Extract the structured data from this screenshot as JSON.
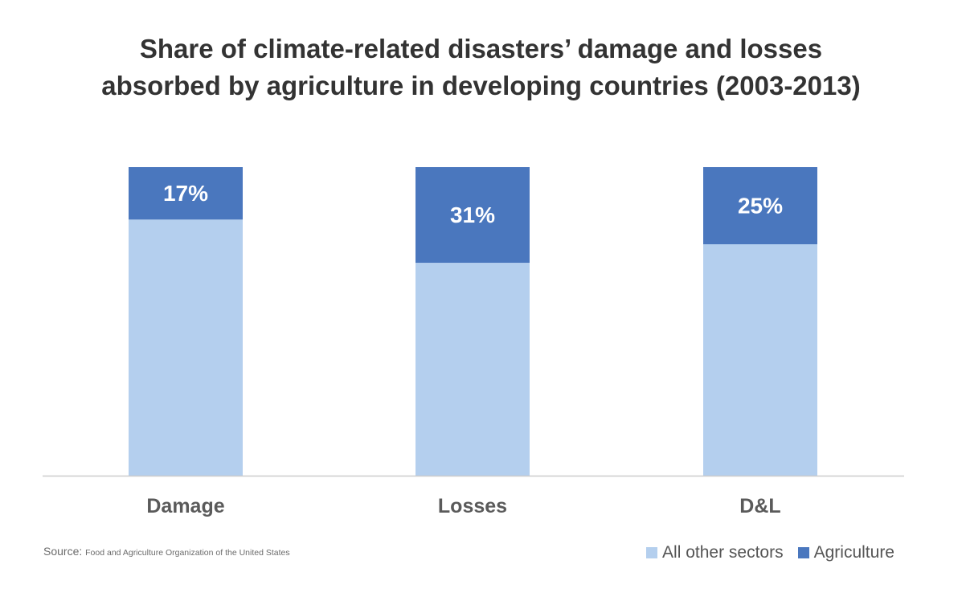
{
  "title_lines": [
    "Share of climate-related disasters’ damage and losses",
    "absorbed by agriculture in developing countries (2003-2013)"
  ],
  "source": {
    "prefix": "Source:",
    "name": "Food and Agriculture Organization of the United States"
  },
  "colors": {
    "other": "#b4cfee",
    "agriculture": "#4a77be",
    "axis": "#cccccc"
  },
  "chart_data": {
    "type": "bar",
    "stacked": true,
    "categories": [
      "Damage",
      "Losses",
      "D&L"
    ],
    "series": [
      {
        "name": "All other sectors",
        "values": [
          83,
          69,
          75
        ]
      },
      {
        "name": "Agriculture",
        "values": [
          17,
          31,
          25
        ]
      }
    ],
    "data_labels": [
      "17%",
      "31%",
      "25%"
    ],
    "ylim": [
      0,
      100
    ],
    "grid": false,
    "legend_position": "bottom-right"
  }
}
